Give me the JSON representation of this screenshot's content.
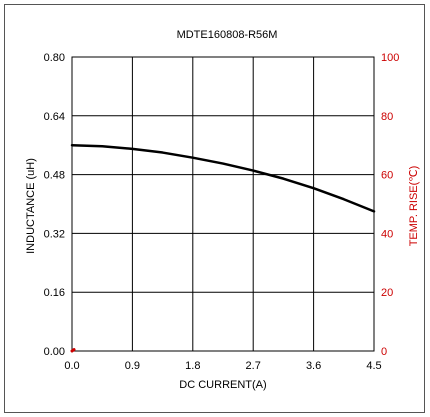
{
  "chart_data": {
    "type": "line",
    "title": "MDTE160808-R56M",
    "xlabel": "DC CURRENT(A)",
    "ylabel": "INDUCTANCE (uH)",
    "y2label": "TEMP. RISE(℃)",
    "xlim": [
      0,
      4.5
    ],
    "ylim": [
      0,
      0.8
    ],
    "y2lim": [
      0,
      100
    ],
    "x_ticks": [
      "0.0",
      "0.9",
      "1.8",
      "2.7",
      "3.6",
      "4.5"
    ],
    "y_ticks": [
      "0.00",
      "0.16",
      "0.32",
      "0.48",
      "0.64",
      "0.80"
    ],
    "y2_ticks": [
      "0",
      "20",
      "40",
      "60",
      "80",
      "100"
    ],
    "grid": true,
    "series": [
      {
        "axis": "left",
        "color": "#000000",
        "x": [
          0,
          0.45,
          0.9,
          1.35,
          1.8,
          2.25,
          2.7,
          3.15,
          3.6,
          4.05,
          4.5
        ],
        "y": [
          0.56,
          0.557,
          0.55,
          0.54,
          0.526,
          0.51,
          0.491,
          0.469,
          0.443,
          0.413,
          0.38
        ]
      },
      {
        "axis": "right",
        "color": "#cc0000",
        "x": [
          0,
          0.03
        ],
        "y": [
          0,
          0.5
        ]
      }
    ],
    "colors": {
      "left_axis": "#000000",
      "right_axis": "#cc0000"
    }
  }
}
